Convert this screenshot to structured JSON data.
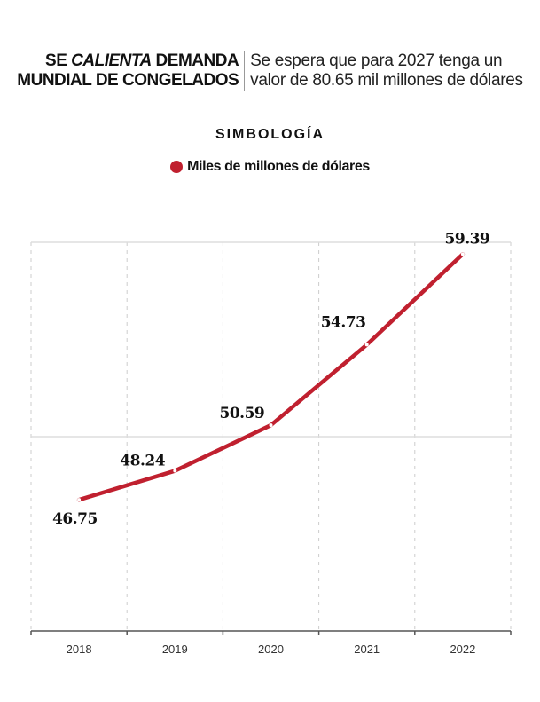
{
  "header": {
    "title_line1_pre": "SE ",
    "title_line1_em": "CALIENTA",
    "title_line1_post": " DEMANDA",
    "title_line2": "MUNDIAL DE CONGELADOS",
    "subtitle_line1": "Se espera que para 2027 tenga un",
    "subtitle_line2": "valor de 80.65 mil millones de dólares"
  },
  "chart_data": {
    "type": "line",
    "title": "SE CALIENTA DEMANDA MUNDIAL DE CONGELADOS",
    "legend_title": "SIMBOLOGÍA",
    "categories": [
      "2018",
      "2019",
      "2020",
      "2021",
      "2022"
    ],
    "series": [
      {
        "name": "Miles de millones de dólares",
        "color": "#c0202f",
        "values": [
          46.75,
          48.24,
          50.59,
          54.73,
          59.39
        ],
        "labels": [
          "46.75",
          "48.24",
          "50.59",
          "54.73",
          "59.39"
        ]
      }
    ],
    "ylim": [
      40,
      60
    ],
    "gridlines_y": [
      50,
      60
    ],
    "grid": true,
    "xlabel": "",
    "ylabel": "",
    "legend_placement": "top-center"
  }
}
